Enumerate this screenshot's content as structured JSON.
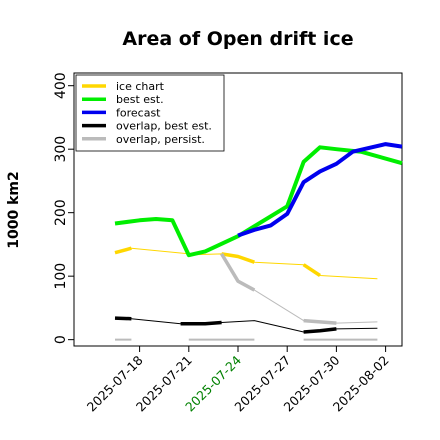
{
  "chart_data": {
    "type": "line",
    "title": "Area of Open drift ice",
    "ylabel": "1000 km2",
    "xlabel": "",
    "ylim": [
      -10,
      420
    ],
    "yticks": [
      0,
      100,
      200,
      300,
      400
    ],
    "xlim": [
      "2025-07-14",
      "2025-08-03"
    ],
    "xticks": [
      {
        "label": "2025-07-18",
        "date": "2025-07-18",
        "color": "#000000"
      },
      {
        "label": "2025-07-21",
        "date": "2025-07-21",
        "color": "#000000"
      },
      {
        "label": "2025-07-24",
        "date": "2025-07-24",
        "color": "#008000"
      },
      {
        "label": "2025-07-27",
        "date": "2025-07-27",
        "color": "#000000"
      },
      {
        "label": "2025-07-30",
        "date": "2025-07-30",
        "color": "#000000"
      },
      {
        "label": "2025-08-02",
        "date": "2025-08-02",
        "color": "#000000"
      }
    ],
    "grid": false,
    "legend_position": "top-left",
    "series": [
      {
        "name": "ice chart",
        "color": "#FFD700",
        "style": "dashed-thin",
        "points": [
          [
            "2025-07-16T12:00",
            137
          ],
          [
            "2025-07-17T12:00",
            144
          ],
          [
            "2025-07-21T12:00",
            134
          ],
          [
            "2025-07-23T00:00",
            135
          ],
          [
            "2025-07-24T00:00",
            131
          ],
          [
            "2025-07-25T00:00",
            122
          ],
          [
            "2025-07-28T00:00",
            118
          ],
          [
            "2025-07-29T00:00",
            101
          ],
          [
            "2025-08-01T12:00",
            96
          ]
        ]
      },
      {
        "name": "best est.",
        "color": "#00EE00",
        "style": "solid",
        "points": [
          [
            "2025-07-16T12:00",
            183
          ],
          [
            "2025-07-18T00:00",
            188
          ],
          [
            "2025-07-19T00:00",
            190
          ],
          [
            "2025-07-20T00:00",
            188
          ],
          [
            "2025-07-21T00:00",
            133
          ],
          [
            "2025-07-22T00:00",
            139
          ],
          [
            "2025-07-24T00:00",
            163
          ],
          [
            "2025-07-27T00:00",
            210
          ],
          [
            "2025-07-28T00:00",
            280
          ],
          [
            "2025-07-29T00:00",
            303
          ],
          [
            "2025-07-30T00:00",
            300
          ],
          [
            "2025-07-31T12:00",
            296
          ],
          [
            "2025-08-03T00:00",
            278
          ]
        ]
      },
      {
        "name": "forecast",
        "color": "#0000EE",
        "style": "solid",
        "points": [
          [
            "2025-07-24T00:00",
            164
          ],
          [
            "2025-07-25T00:00",
            173
          ],
          [
            "2025-07-26T00:00",
            180
          ],
          [
            "2025-07-27T00:00",
            198
          ],
          [
            "2025-07-28T00:00",
            248
          ],
          [
            "2025-07-29T00:00",
            265
          ],
          [
            "2025-07-30T00:00",
            277
          ],
          [
            "2025-07-31T00:00",
            296
          ],
          [
            "2025-08-02T00:00",
            308
          ],
          [
            "2025-08-03T00:00",
            304
          ]
        ]
      },
      {
        "name": "overlap, best est.",
        "color": "#000000",
        "style": "dashed-thin",
        "points": [
          [
            "2025-07-16T12:00",
            34
          ],
          [
            "2025-07-17T12:00",
            33
          ],
          [
            "2025-07-20T12:00",
            25
          ],
          [
            "2025-07-21T12:00",
            25
          ],
          [
            "2025-07-22T00:00",
            25
          ],
          [
            "2025-07-23T00:00",
            27
          ],
          [
            "2025-07-25T00:00",
            30
          ],
          [
            "2025-07-28T00:00",
            12
          ],
          [
            "2025-07-29T00:00",
            14
          ],
          [
            "2025-07-30T00:00",
            17
          ],
          [
            "2025-08-01T12:00",
            18
          ]
        ]
      },
      {
        "name": "overlap, persist.",
        "color": "#BBBBBB",
        "style": "dashed-thin",
        "points": [
          [
            "2025-07-23T00:00",
            135
          ],
          [
            "2025-07-24T00:00",
            92
          ],
          [
            "2025-07-25T00:00",
            78
          ],
          [
            "2025-07-28T00:00",
            30
          ],
          [
            "2025-07-29T00:00",
            28
          ],
          [
            "2025-07-30T00:00",
            26
          ],
          [
            "2025-08-01T12:00",
            28
          ]
        ],
        "zero_marks": [
          [
            "2025-07-16T12:00",
            "2025-07-17T12:00"
          ],
          [
            "2025-07-21T00:00",
            "2025-07-25T00:00"
          ],
          [
            "2025-07-28T00:00",
            "2025-08-01T12:00"
          ]
        ]
      }
    ]
  }
}
